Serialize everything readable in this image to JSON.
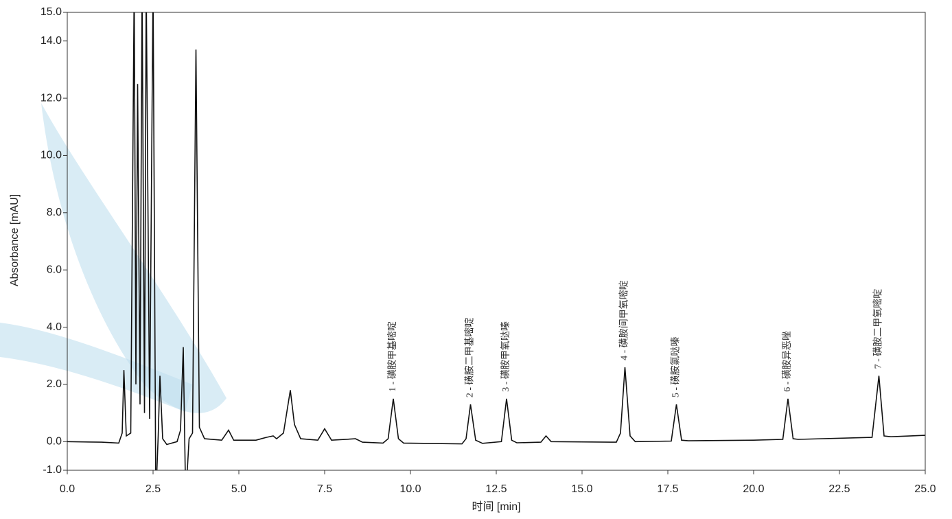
{
  "chart_data": {
    "type": "line",
    "xlabel": "时间 [min]",
    "ylabel": "Absorbance [mAU]",
    "color": "#111111",
    "x": [
      0,
      1.0,
      1.5,
      1.6,
      1.65,
      1.72,
      1.85,
      1.95,
      2.0,
      2.05,
      2.12,
      2.18,
      2.25,
      2.3,
      2.4,
      2.5,
      2.58,
      2.65,
      2.7,
      2.78,
      2.9,
      3.2,
      3.3,
      3.38,
      3.45,
      3.55,
      3.65,
      3.75,
      3.85,
      4.0,
      4.5,
      4.7,
      4.85,
      5.5,
      5.8,
      6.0,
      6.1,
      6.3,
      6.5,
      6.62,
      6.8,
      7.3,
      7.5,
      7.7,
      8.4,
      8.6,
      9.2,
      9.35,
      9.5,
      9.65,
      9.8,
      11.5,
      11.62,
      11.75,
      11.9,
      12.1,
      12.65,
      12.8,
      12.95,
      13.1,
      13.8,
      13.95,
      14.1,
      16.0,
      16.12,
      16.25,
      16.4,
      16.55,
      17.6,
      17.75,
      17.9,
      18.1,
      20.0,
      20.85,
      21.0,
      21.15,
      21.3,
      23.45,
      23.65,
      23.8,
      24.0,
      25.0
    ],
    "values": [
      0.0,
      -0.02,
      -0.05,
      0.3,
      2.5,
      0.2,
      0.3,
      16,
      2.0,
      12.5,
      1.3,
      16,
      1.0,
      16,
      0.8,
      16,
      -2,
      0.2,
      2.3,
      0.1,
      -0.1,
      0.0,
      0.4,
      3.3,
      -2,
      0.1,
      0.3,
      13.7,
      0.5,
      0.1,
      0.05,
      0.4,
      0.05,
      0.05,
      0.15,
      0.2,
      0.1,
      0.3,
      1.8,
      0.6,
      0.1,
      0.05,
      0.45,
      0.05,
      0.1,
      -0.02,
      -0.05,
      0.1,
      1.5,
      0.1,
      -0.05,
      -0.08,
      0.1,
      1.3,
      0.05,
      -0.06,
      0.0,
      1.5,
      0.05,
      -0.04,
      -0.02,
      0.2,
      0.0,
      -0.02,
      0.3,
      2.6,
      0.2,
      0.0,
      0.02,
      1.3,
      0.05,
      0.03,
      0.05,
      0.08,
      1.5,
      0.1,
      0.08,
      0.15,
      2.3,
      0.2,
      0.17,
      0.22
    ],
    "xlim": [
      0,
      25
    ],
    "xticks": [
      {
        "value": 0,
        "label": "0.0"
      },
      2.5,
      {
        "value": 5,
        "label": "5.0"
      },
      7.5,
      {
        "value": 10,
        "label": "10.0"
      },
      12.5,
      {
        "value": 15,
        "label": "15.0"
      },
      17.5,
      {
        "value": 20,
        "label": "20.0"
      },
      22.5,
      {
        "value": 25,
        "label": "25.0"
      }
    ],
    "ylim": [
      -1,
      15
    ],
    "yticks": [
      {
        "value": -1,
        "label": "-1.0"
      },
      {
        "value": 0,
        "label": "0.0"
      },
      {
        "value": 2,
        "label": "2.0"
      },
      {
        "value": 4,
        "label": "4.0"
      },
      {
        "value": 6,
        "label": "6.0"
      },
      {
        "value": 8,
        "label": "8.0"
      },
      {
        "value": 10,
        "label": "10.0"
      },
      {
        "value": 12,
        "label": "12.0"
      },
      {
        "value": 14,
        "label": "14.0"
      },
      {
        "value": 15,
        "label": "15.0"
      }
    ],
    "annotations": [
      {
        "text": "1 - 磺胺甲基嘧啶",
        "x": 9.5
      },
      {
        "text": "2 - 磺胺二甲基嘧啶",
        "x": 11.75
      },
      {
        "text": "3 - 磺胺甲氧哒嗪",
        "x": 12.8
      },
      {
        "text": "4 - 磺胺间甲氧嘧啶",
        "x": 16.25
      },
      {
        "text": "5 - 磺胺氯哒嗪",
        "x": 17.75
      },
      {
        "text": "6 - 磺胺异恶唑",
        "x": 21.0
      },
      {
        "text": "7 - 磺胺二甲氧嘧啶",
        "x": 23.65
      }
    ]
  }
}
